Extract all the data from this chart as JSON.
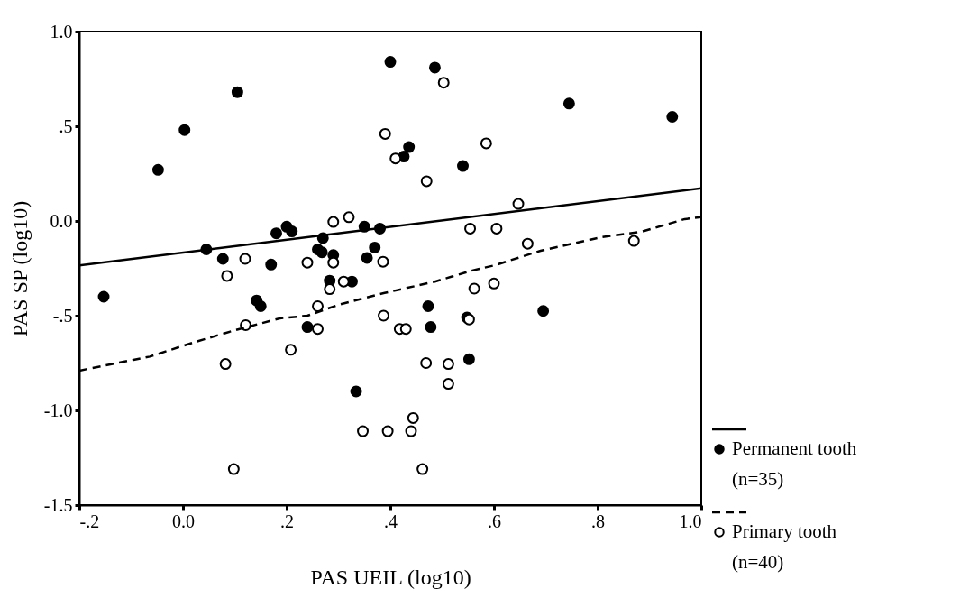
{
  "chart_data": {
    "type": "scatter",
    "xlabel": "PAS UEIL (log10)",
    "ylabel": "PAS SP (log10)",
    "xlim": [
      -0.2,
      1.0
    ],
    "xticks": [
      {
        "value": -0.2,
        "label": "-.2"
      },
      {
        "value": 0,
        "label": "0.0"
      },
      {
        "value": 0.2,
        "label": ".2"
      },
      {
        "value": 0.4,
        "label": ".4"
      },
      {
        "value": 0.6,
        "label": ".6"
      },
      {
        "value": 0.8,
        "label": ".8"
      },
      {
        "value": 1.0,
        "label": "1.0"
      }
    ],
    "ylim": [
      -1.5,
      1.0
    ],
    "yticks": [
      {
        "value": -1.5,
        "label": "-1.5"
      },
      {
        "value": -1.0,
        "label": "-1.0"
      },
      {
        "value": -0.5,
        "label": "-.5"
      },
      {
        "value": 0,
        "label": "0.0"
      },
      {
        "value": 0.5,
        "label": ".5"
      },
      {
        "value": 1.0,
        "label": "1.0"
      }
    ],
    "grid": false,
    "legend": "right",
    "series": [
      {
        "name": "Permanent tooth (n=35)",
        "type": "scatter",
        "marker": "circle",
        "color": "#000000",
        "x": [
          0.105,
          0.003,
          -0.048,
          0.4,
          0.045,
          0.077,
          0.18,
          0.2,
          0.21,
          0.17,
          0.27,
          0.26,
          0.268,
          0.29,
          0.35,
          0.38,
          0.37,
          0.355,
          0.486,
          0.745,
          0.944,
          0.436,
          0.426,
          0.54,
          -0.153,
          0.142,
          0.15,
          0.283,
          0.326,
          0.24,
          0.334,
          0.473,
          0.478,
          0.548,
          0.552,
          0.695
        ],
        "values": [
          0.68,
          0.48,
          0.27,
          0.84,
          -0.15,
          -0.2,
          -0.065,
          -0.03,
          -0.055,
          -0.23,
          -0.09,
          -0.15,
          -0.165,
          -0.18,
          -0.03,
          -0.04,
          -0.14,
          -0.195,
          0.81,
          0.62,
          0.55,
          0.39,
          0.34,
          0.29,
          -0.4,
          -0.42,
          -0.45,
          -0.315,
          -0.32,
          -0.56,
          -0.9,
          -0.45,
          -0.56,
          -0.51,
          -0.73,
          -0.475
        ]
      },
      {
        "name": "Primary tooth (n=40)",
        "type": "scatter",
        "marker": "circle",
        "color": "#ffffff",
        "x": [
          0.39,
          0.41,
          0.29,
          0.32,
          0.12,
          0.24,
          0.29,
          0.386,
          0.085,
          0.503,
          0.47,
          0.585,
          0.647,
          0.554,
          0.605,
          0.665,
          0.87,
          0.283,
          0.31,
          0.26,
          0.121,
          0.387,
          0.26,
          0.208,
          0.082,
          0.347,
          0.395,
          0.098,
          0.562,
          0.6,
          0.418,
          0.43,
          0.552,
          0.469,
          0.512,
          0.512,
          0.44,
          0.444,
          0.462
        ],
        "values": [
          0.46,
          0.33,
          -0.005,
          0.02,
          -0.2,
          -0.22,
          -0.22,
          -0.215,
          -0.29,
          0.73,
          0.21,
          0.41,
          0.09,
          -0.04,
          -0.04,
          -0.12,
          -0.105,
          -0.36,
          -0.32,
          -0.45,
          -0.55,
          -0.5,
          -0.57,
          -0.68,
          -0.755,
          -1.11,
          -1.11,
          -1.31,
          -0.357,
          -0.33,
          -0.57,
          -0.57,
          -0.52,
          -0.75,
          -0.755,
          -0.86,
          -1.11,
          -1.04,
          -1.31
        ]
      },
      {
        "type": "line",
        "marker": "none",
        "line_style": "solid",
        "color": "#000000",
        "x": [
          -0.2,
          1.0
        ],
        "values": [
          -0.235,
          0.173
        ]
      },
      {
        "type": "line",
        "marker": "none",
        "line_style": "dashed",
        "color": "#000000",
        "x": [
          -0.2,
          -0.127,
          -0.064,
          0.016,
          0.096,
          0.187,
          0.24,
          0.303,
          0.389,
          0.486,
          0.56,
          0.6,
          0.69,
          0.807,
          0.887,
          0.968,
          1.0
        ],
        "values": [
          -0.79,
          -0.75,
          -0.716,
          -0.645,
          -0.58,
          -0.514,
          -0.5,
          -0.44,
          -0.38,
          -0.32,
          -0.26,
          -0.235,
          -0.157,
          -0.086,
          -0.055,
          0.01,
          0.02
        ]
      }
    ]
  }
}
